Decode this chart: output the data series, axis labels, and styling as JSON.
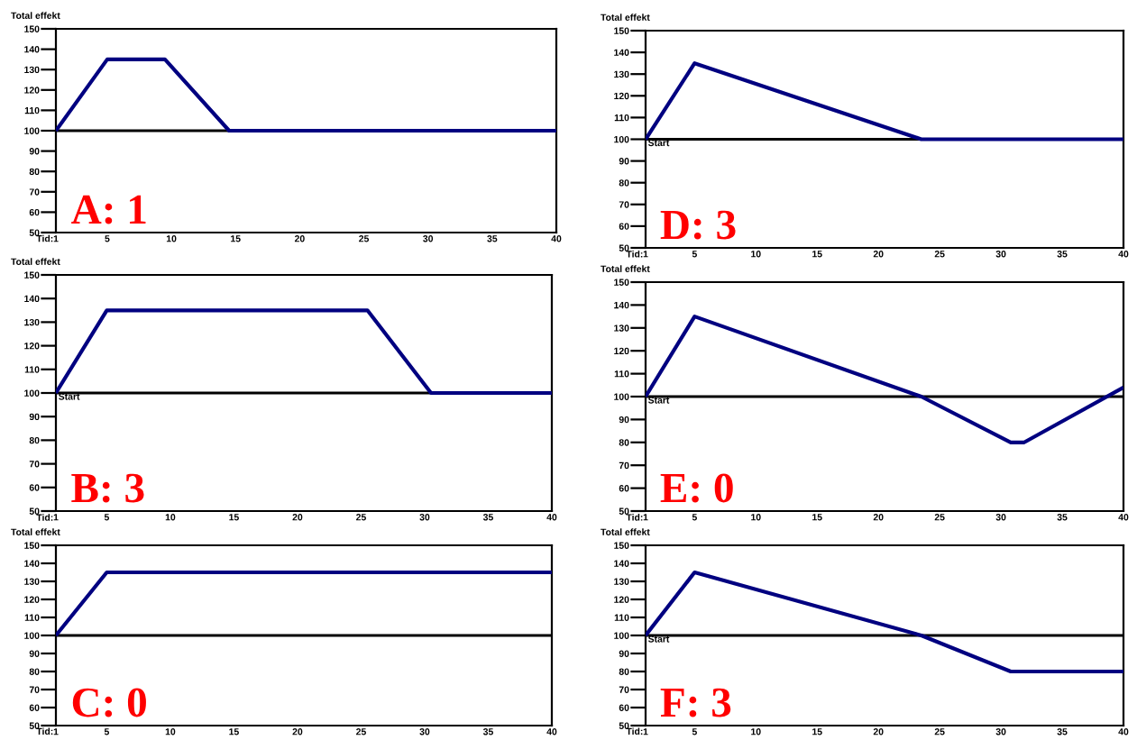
{
  "chart_data": [
    {
      "type": "line",
      "xlabel": "Tid:",
      "ylabel": "Total effekt",
      "xlim": [
        1,
        40
      ],
      "ylim": [
        50,
        150
      ],
      "xticks": [
        1,
        5,
        10,
        15,
        20,
        25,
        30,
        35,
        40
      ],
      "yticks": [
        50,
        60,
        70,
        80,
        90,
        100,
        110,
        120,
        130,
        140,
        150
      ],
      "series": [
        {
          "color": "#000080",
          "x": [
            1,
            5,
            9.5,
            14.5,
            40
          ],
          "values": [
            100,
            135,
            135,
            100,
            100
          ]
        }
      ],
      "ref_lines": [
        {
          "axis": "y",
          "value": 100,
          "color": "#000000"
        }
      ],
      "annotations": [
        "A: 1"
      ]
    },
    {
      "type": "line",
      "xlabel": "Tid:",
      "ylabel": "Total effekt",
      "xlim": [
        1,
        40
      ],
      "ylim": [
        50,
        150
      ],
      "xticks": [
        1,
        5,
        10,
        15,
        20,
        25,
        30,
        35,
        40
      ],
      "yticks": [
        50,
        60,
        70,
        80,
        90,
        100,
        110,
        120,
        130,
        140,
        150
      ],
      "series": [
        {
          "color": "#000080",
          "x": [
            1,
            5,
            23.5,
            40
          ],
          "values": [
            100,
            135,
            100,
            100
          ]
        }
      ],
      "ref_lines": [
        {
          "axis": "y",
          "value": 100,
          "label": "Start",
          "color": "#000000"
        }
      ],
      "annotations": [
        "D: 3"
      ]
    },
    {
      "type": "line",
      "xlabel": "Tid:",
      "ylabel": "Total effekt",
      "xlim": [
        1,
        40
      ],
      "ylim": [
        50,
        150
      ],
      "xticks": [
        1,
        5,
        10,
        15,
        20,
        25,
        30,
        35,
        40
      ],
      "yticks": [
        50,
        60,
        70,
        80,
        90,
        100,
        110,
        120,
        130,
        140,
        150
      ],
      "series": [
        {
          "color": "#000080",
          "x": [
            1,
            5,
            25.5,
            30.5,
            40
          ],
          "values": [
            100,
            135,
            135,
            100,
            100
          ]
        }
      ],
      "ref_lines": [
        {
          "axis": "y",
          "value": 100,
          "label": "Start",
          "color": "#000000"
        }
      ],
      "annotations": [
        "B: 3"
      ]
    },
    {
      "type": "line",
      "xlabel": "Tid:",
      "ylabel": "Total effekt",
      "xlim": [
        1,
        40
      ],
      "ylim": [
        50,
        150
      ],
      "xticks": [
        1,
        5,
        10,
        15,
        20,
        25,
        30,
        35,
        40
      ],
      "yticks": [
        50,
        60,
        70,
        80,
        90,
        100,
        110,
        120,
        130,
        140,
        150
      ],
      "series": [
        {
          "color": "#000080",
          "x": [
            1,
            5,
            23.5,
            30.8,
            31.9,
            40
          ],
          "values": [
            100,
            135,
            100,
            80,
            80,
            104
          ]
        }
      ],
      "ref_lines": [
        {
          "axis": "y",
          "value": 100,
          "label": "Start",
          "color": "#000000"
        }
      ],
      "annotations": [
        "E: 0"
      ]
    },
    {
      "type": "line",
      "xlabel": "Tid:",
      "ylabel": "Total effekt",
      "xlim": [
        1,
        40
      ],
      "ylim": [
        50,
        150
      ],
      "xticks": [
        1,
        5,
        10,
        15,
        20,
        25,
        30,
        35,
        40
      ],
      "yticks": [
        50,
        60,
        70,
        80,
        90,
        100,
        110,
        120,
        130,
        140,
        150
      ],
      "series": [
        {
          "color": "#000080",
          "x": [
            1,
            5,
            40
          ],
          "values": [
            100,
            135,
            135
          ]
        }
      ],
      "ref_lines": [
        {
          "axis": "y",
          "value": 100,
          "color": "#000000"
        }
      ],
      "annotations": [
        "C: 0"
      ]
    },
    {
      "type": "line",
      "xlabel": "Tid:",
      "ylabel": "Total effekt",
      "xlim": [
        1,
        40
      ],
      "ylim": [
        50,
        150
      ],
      "xticks": [
        1,
        5,
        10,
        15,
        20,
        25,
        30,
        35,
        40
      ],
      "yticks": [
        50,
        60,
        70,
        80,
        90,
        100,
        110,
        120,
        130,
        140,
        150
      ],
      "series": [
        {
          "color": "#000080",
          "x": [
            1,
            5,
            23.5,
            30.8,
            40
          ],
          "values": [
            100,
            135,
            100,
            80,
            80
          ]
        }
      ],
      "ref_lines": [
        {
          "axis": "y",
          "value": 100,
          "label": "Start",
          "color": "#000000"
        }
      ],
      "annotations": [
        "F: 3"
      ]
    }
  ]
}
